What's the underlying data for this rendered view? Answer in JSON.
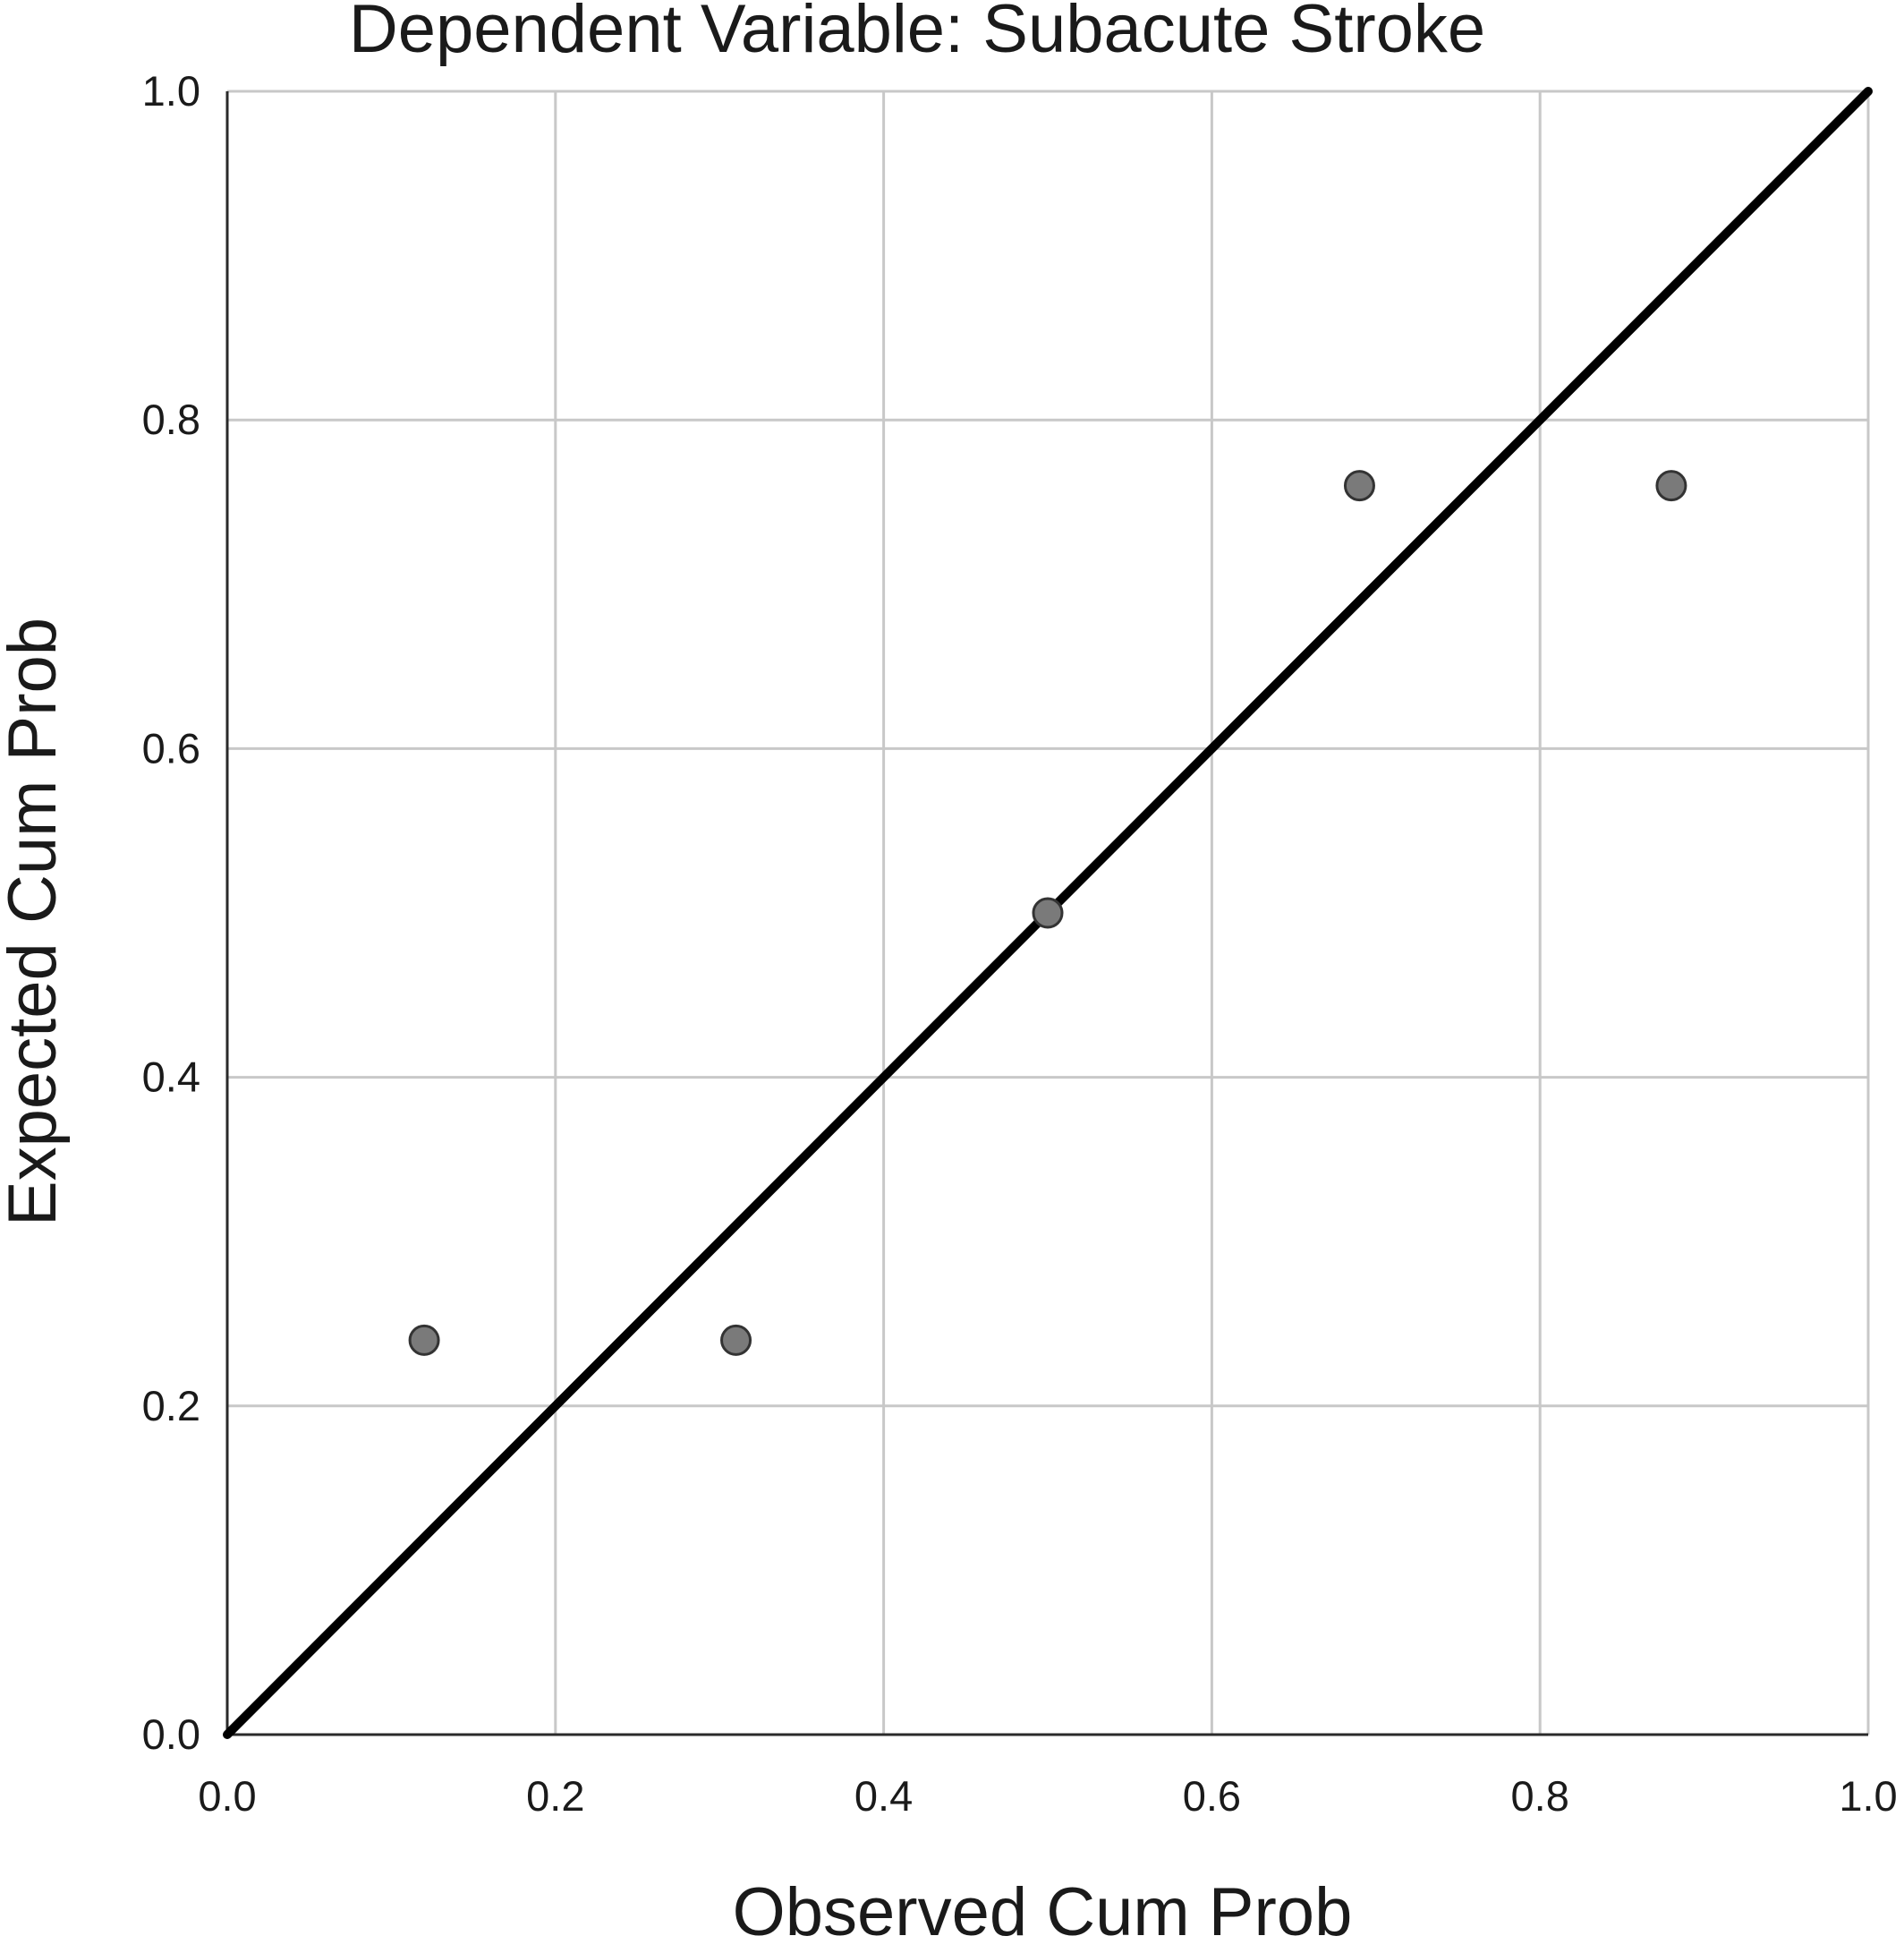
{
  "chart_data": {
    "type": "scatter",
    "title": "Dependent Variable: Subacute Stroke",
    "xlabel": "Observed Cum Prob",
    "ylabel": "Expected Cum Prob",
    "xlim": [
      0.0,
      1.0
    ],
    "ylim": [
      0.0,
      1.0
    ],
    "x_ticks": [
      "0.0",
      "0.2",
      "0.4",
      "0.6",
      "0.8",
      "1.0"
    ],
    "y_ticks": [
      "0.0",
      "0.2",
      "0.4",
      "0.6",
      "0.8",
      "1.0"
    ],
    "grid": true,
    "reference_line": {
      "from": [
        0.0,
        0.0
      ],
      "to": [
        1.0,
        1.0
      ]
    },
    "points": [
      {
        "x": 0.12,
        "y": 0.24
      },
      {
        "x": 0.31,
        "y": 0.24
      },
      {
        "x": 0.5,
        "y": 0.5
      },
      {
        "x": 0.69,
        "y": 0.76
      },
      {
        "x": 0.88,
        "y": 0.76
      }
    ],
    "colors": {
      "point_fill": "#7a7a7a",
      "point_stroke": "#333333",
      "reference_line": "#000000",
      "grid": "#c8c8c8"
    }
  }
}
